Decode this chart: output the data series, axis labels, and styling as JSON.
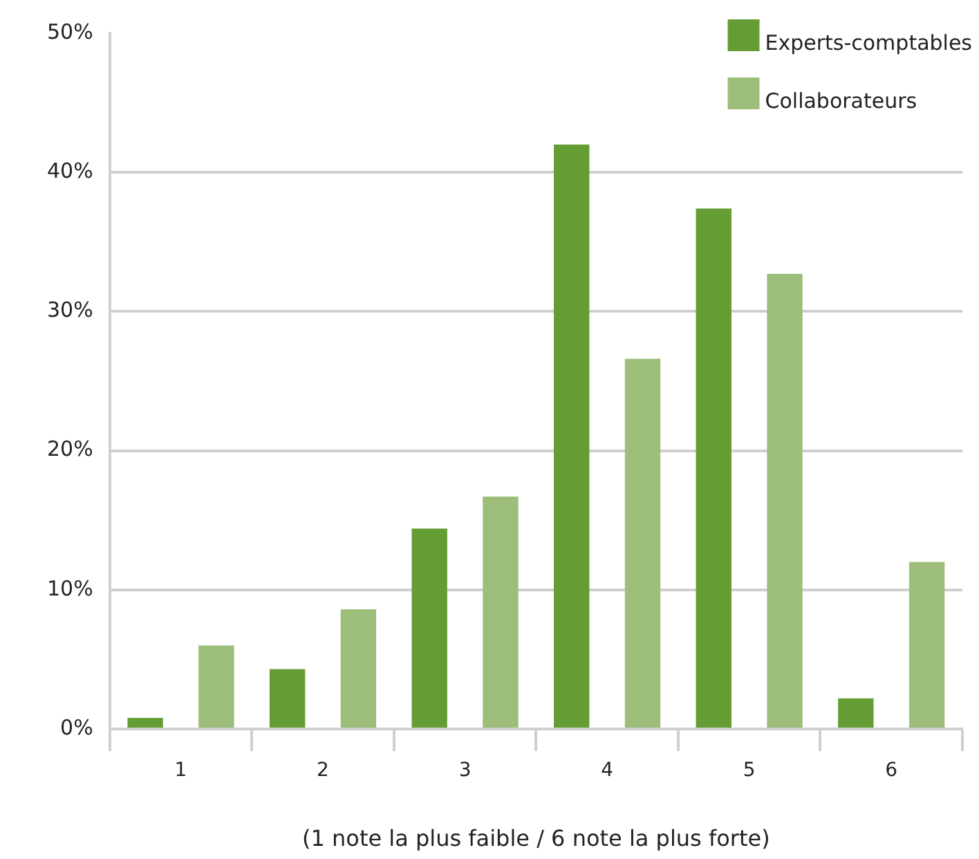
{
  "chart_data": {
    "type": "bar",
    "xlabel": "(1 note la plus faible / 6 note la plus forte)",
    "categories": [
      "1",
      "2",
      "3",
      "4",
      "5",
      "6"
    ],
    "series": [
      {
        "name": "Experts-comptables",
        "color": "#659d35",
        "values": [
          0.8,
          4.3,
          14.4,
          42.0,
          37.4,
          2.2
        ]
      },
      {
        "name": "Collaborateurs",
        "color": "#9dbd7a",
        "values": [
          6.0,
          8.6,
          16.7,
          26.6,
          32.7,
          12.0
        ]
      }
    ],
    "ylim": [
      0,
      50
    ],
    "yticks": [
      {
        "value": 0,
        "label": "0%"
      },
      {
        "value": 10,
        "label": "10%"
      },
      {
        "value": 20,
        "label": "20%"
      },
      {
        "value": 30,
        "label": "30%"
      },
      {
        "value": 40,
        "label": "40%"
      },
      {
        "value": 50,
        "label": "50%"
      }
    ],
    "grid": "y",
    "legend": "top right"
  }
}
